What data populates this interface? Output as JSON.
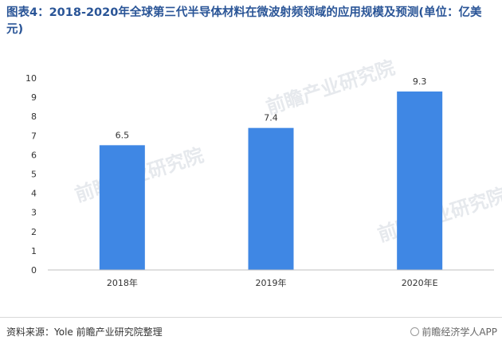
{
  "title": "图表4：2018-2020年全球第三代半导体材料在微波射频领域的应用规模及预测(单位：亿美元)",
  "chart_data": {
    "type": "bar",
    "categories": [
      "2018年",
      "2019年",
      "2020年E"
    ],
    "values": [
      6.5,
      7.4,
      9.3
    ],
    "title": "图表4：2018-2020年全球第三代半导体材料在微波射频领域的应用规模及预测(单位：亿美元)",
    "xlabel": "",
    "ylabel": "",
    "ylim": [
      0,
      10
    ],
    "yticks": [
      "0",
      "1",
      "2",
      "3",
      "4",
      "5",
      "6",
      "7",
      "8",
      "9",
      "10"
    ],
    "data_labels": [
      "6.5",
      "7.4",
      "9.3"
    ],
    "bar_color": "#3f87e4",
    "grid": false,
    "legend": "none"
  },
  "watermark_text": "前瞻产业研究院",
  "footer": {
    "source": "资料来源：Yole 前瞻产业研究院整理",
    "brand": "前瞻经济学人APP"
  }
}
